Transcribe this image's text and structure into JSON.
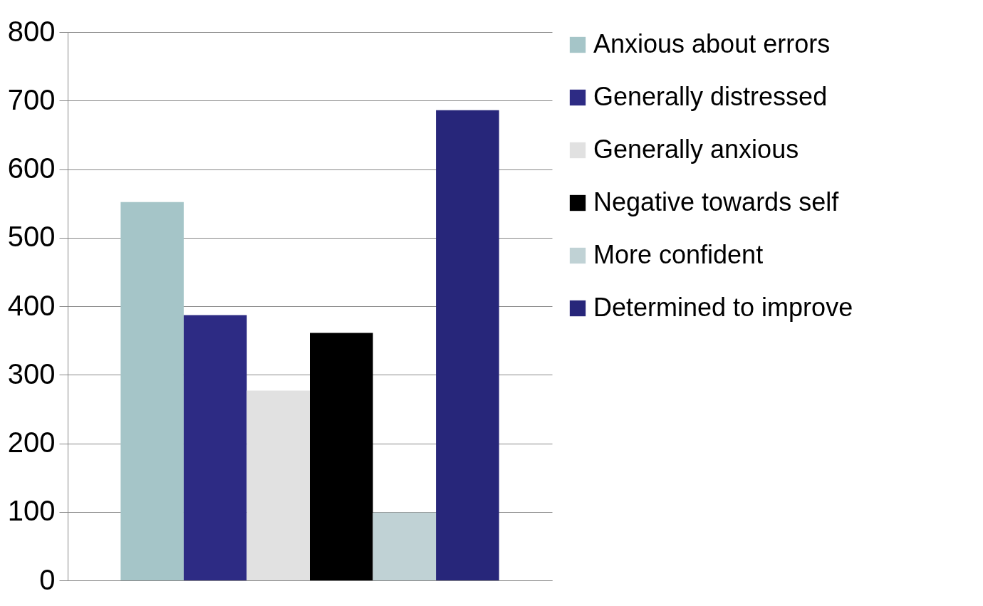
{
  "chart_data": {
    "type": "bar",
    "categories": [
      null
    ],
    "series": [
      {
        "name": "Anxious about errors",
        "color": "#a5c5c8",
        "values": [
          552
        ]
      },
      {
        "name": "Generally distressed",
        "color": "#2d2b84",
        "values": [
          387
        ]
      },
      {
        "name": "Generally anxious",
        "color": "#e1e1e1",
        "values": [
          277
        ]
      },
      {
        "name": "Negative towards self",
        "color": "#000000",
        "values": [
          361
        ]
      },
      {
        "name": "More confident",
        "color": "#c0d2d5",
        "values": [
          99
        ]
      },
      {
        "name": "Determined to improve",
        "color": "#27267a",
        "values": [
          686
        ]
      }
    ],
    "ylim": [
      0,
      800
    ],
    "yticks": [
      0,
      100,
      200,
      300,
      400,
      500,
      600,
      700,
      800
    ],
    "grid": "y",
    "legend": "right",
    "tick_labels": "y"
  }
}
